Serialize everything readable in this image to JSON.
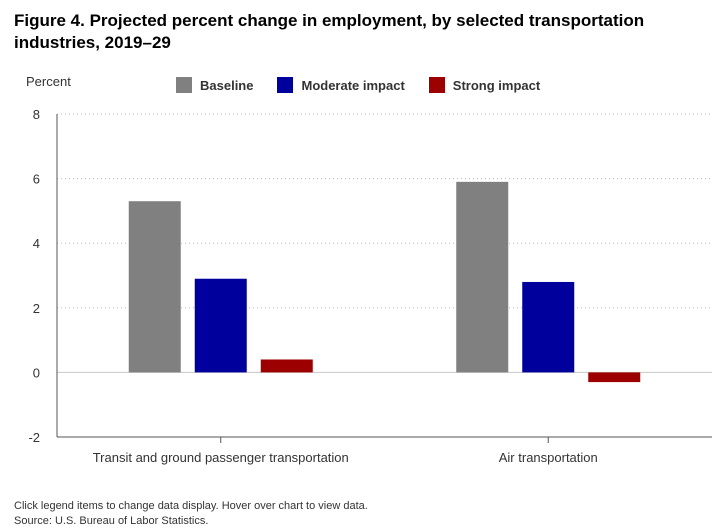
{
  "title_line1": "Figure 4. Projected percent change in employment, by selected transportation",
  "title_line2": "industries, 2019–29",
  "footer": {
    "note": "Click legend items to change data display. Hover over chart to view data.",
    "source": "Source: U.S. Bureau of Labor Statistics."
  },
  "chart_data": {
    "type": "bar",
    "title": "Figure 4. Projected percent change in employment, by selected transportation industries, 2019–29",
    "ylabel": "Percent",
    "xlabel": "",
    "ylim": [
      -2,
      8
    ],
    "yticks": [
      -2,
      0,
      2,
      4,
      6,
      8
    ],
    "grid": true,
    "legend_position": "top",
    "categories": [
      "Transit and ground passenger transportation",
      "Air transportation"
    ],
    "series": [
      {
        "name": "Baseline",
        "color": "#808080",
        "values": [
          5.3,
          5.9
        ]
      },
      {
        "name": "Moderate impact",
        "color": "#00009c",
        "values": [
          2.9,
          2.8
        ]
      },
      {
        "name": "Strong impact",
        "color": "#9c0000",
        "values": [
          0.4,
          -0.3
        ]
      }
    ]
  }
}
